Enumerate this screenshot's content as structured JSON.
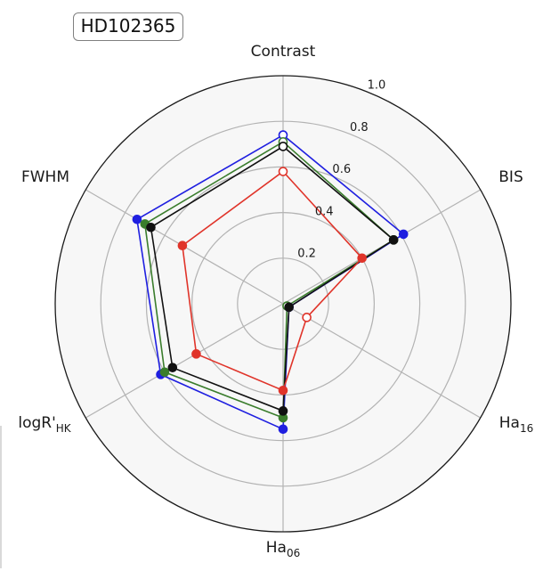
{
  "badge": {
    "text": "HD102365"
  },
  "chart_data": {
    "type": "radar",
    "title": "HD102365",
    "axes": [
      {
        "id": "contrast",
        "label": "Contrast",
        "sub": ""
      },
      {
        "id": "bis",
        "label": "BIS",
        "sub": ""
      },
      {
        "id": "ha16",
        "label": "Ha",
        "sub": "16"
      },
      {
        "id": "ha06",
        "label": "Ha",
        "sub": "06"
      },
      {
        "id": "logrhk",
        "label": "logR'",
        "sub": "HK"
      },
      {
        "id": "fwhm",
        "label": "FWHM",
        "sub": ""
      }
    ],
    "r_ticks": [
      "0.2",
      "0.4",
      "0.6",
      "0.8",
      "1.0"
    ],
    "rlim": [
      0,
      1.0
    ],
    "grid": true,
    "series": [
      {
        "color": "#1f1fe0",
        "values": [
          0.74,
          0.61,
          0.03,
          0.55,
          0.62,
          0.74
        ],
        "filled": [
          false,
          true,
          true,
          true,
          true,
          true
        ]
      },
      {
        "color": "#3a7d2c",
        "values": [
          0.71,
          0.56,
          0.02,
          0.5,
          0.6,
          0.7
        ],
        "filled": [
          false,
          true,
          false,
          true,
          true,
          true
        ]
      },
      {
        "color": "#111111",
        "values": [
          0.69,
          0.56,
          0.03,
          0.47,
          0.56,
          0.67
        ],
        "filled": [
          false,
          true,
          true,
          true,
          true,
          true
        ]
      },
      {
        "color": "#e0342a",
        "values": [
          0.58,
          0.4,
          0.12,
          0.38,
          0.44,
          0.51
        ],
        "filled": [
          false,
          true,
          false,
          true,
          true,
          true
        ]
      }
    ]
  }
}
